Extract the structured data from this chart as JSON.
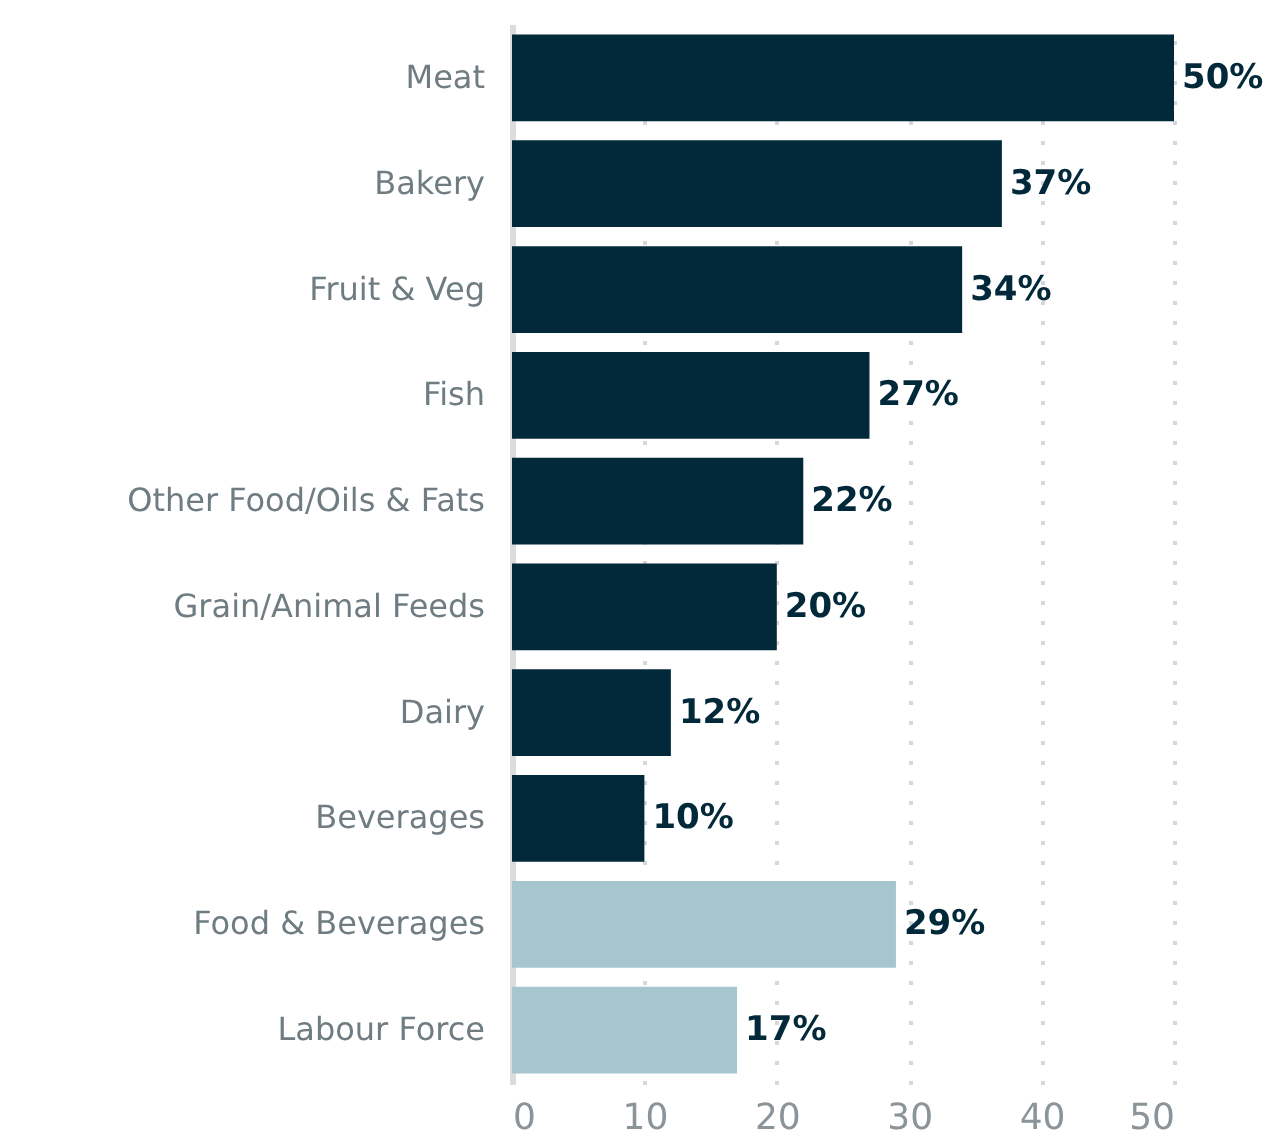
{
  "chart_data": {
    "type": "bar",
    "orientation": "horizontal",
    "categories": [
      "Meat",
      "Bakery",
      "Fruit & Veg",
      "Fish",
      "Other Food/Oils & Fats",
      "Grain/Animal Feeds",
      "Dairy",
      "Beverages",
      "Food & Beverages",
      "Labour Force"
    ],
    "values": [
      50,
      37,
      34,
      27,
      22,
      20,
      12,
      10,
      29,
      17
    ],
    "colors": [
      "#02293a",
      "#02293a",
      "#02293a",
      "#02293a",
      "#02293a",
      "#02293a",
      "#02293a",
      "#02293a",
      "#a6c6cf",
      "#a6c6cf"
    ],
    "value_labels": [
      "50%",
      "37%",
      "34%",
      "27%",
      "22%",
      "20%",
      "12%",
      "10%",
      "29%",
      "17%"
    ],
    "xlim": [
      0,
      50
    ],
    "xticks": [
      0,
      10,
      20,
      30,
      40,
      50
    ],
    "grid": "x"
  }
}
